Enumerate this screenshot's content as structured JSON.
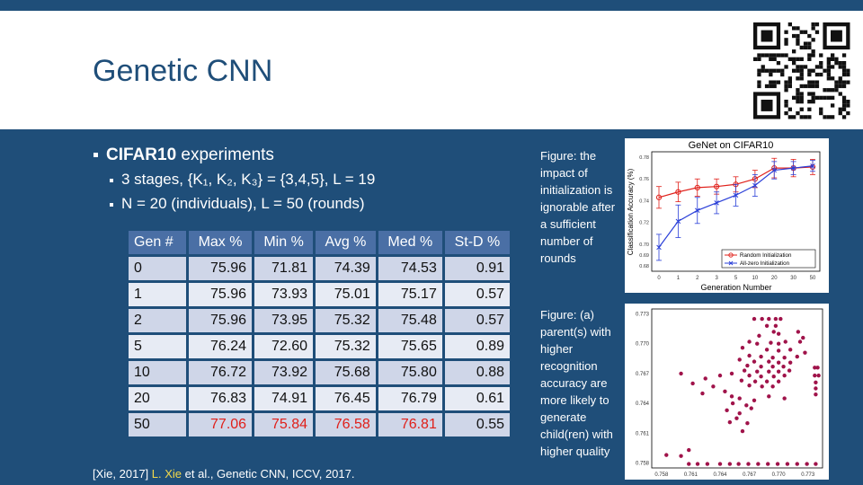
{
  "slide": {
    "title": "Genetic CNN",
    "bullets": {
      "main": "CIFAR10 experiments",
      "main_bold": "CIFAR10",
      "main_rest": " experiments",
      "sub1": "3 stages, {K₁, K₂, K₃} = {3,4,5}, L = 19",
      "sub2": "N = 20 (individuals), L = 50 (rounds)"
    },
    "citation": {
      "prefix": "[Xie, 2017] ",
      "author": "L. Xie",
      "rest": " et al., Genetic CNN, ICCV, 2017."
    }
  },
  "table": {
    "headers": [
      "Gen #",
      "Max %",
      "Min %",
      "Avg %",
      "Med %",
      "St-D %"
    ],
    "rows": [
      {
        "cells": [
          "0",
          "75.96",
          "71.81",
          "74.39",
          "74.53",
          "0.91"
        ],
        "red": [
          false,
          false,
          false,
          false,
          false,
          false
        ]
      },
      {
        "cells": [
          "1",
          "75.96",
          "73.93",
          "75.01",
          "75.17",
          "0.57"
        ],
        "red": [
          false,
          false,
          false,
          false,
          false,
          false
        ]
      },
      {
        "cells": [
          "2",
          "75.96",
          "73.95",
          "75.32",
          "75.48",
          "0.57"
        ],
        "red": [
          false,
          false,
          false,
          false,
          false,
          false
        ]
      },
      {
        "cells": [
          "5",
          "76.24",
          "72.60",
          "75.32",
          "75.65",
          "0.89"
        ],
        "red": [
          false,
          false,
          false,
          false,
          false,
          false
        ]
      },
      {
        "cells": [
          "10",
          "76.72",
          "73.92",
          "75.68",
          "75.80",
          "0.88"
        ],
        "red": [
          false,
          false,
          false,
          false,
          false,
          false
        ]
      },
      {
        "cells": [
          "20",
          "76.83",
          "74.91",
          "76.45",
          "76.79",
          "0.61"
        ],
        "red": [
          false,
          false,
          false,
          false,
          false,
          false
        ]
      },
      {
        "cells": [
          "50",
          "77.06",
          "75.84",
          "76.58",
          "76.81",
          "0.55"
        ],
        "red": [
          false,
          true,
          true,
          true,
          true,
          false
        ]
      }
    ]
  },
  "captions": {
    "fig1": "Figure: the impact of initialization is ignorable after a sufficient number of rounds",
    "fig2": "Figure: (a) parent(s) with higher recognition accuracy are more likely to generate child(ren) with higher quality"
  },
  "colors": {
    "brand": "#1f4e79",
    "red_series": "#e0201a",
    "blue_series": "#2a3fd8",
    "scatter_dot": "#a0134a",
    "highlight": "#f3d94a"
  },
  "chart_data": [
    {
      "type": "line",
      "title": "GeNet on CIFAR10",
      "xlabel": "Generation Number",
      "ylabel": "Classification Accuracy (%)",
      "x": [
        "0",
        "1",
        "2",
        "3",
        "5",
        "10",
        "20",
        "30",
        "50"
      ],
      "yticks": [
        "0.68",
        "0.69",
        "0.70",
        "0.72",
        "0.74",
        "0.76",
        "0.78"
      ],
      "ylim": [
        0.675,
        0.785
      ],
      "legend_position": "bottom-right",
      "series": [
        {
          "name": "Random Initialization",
          "color": "#e0201a",
          "marker": "circle",
          "values": [
            0.743,
            0.748,
            0.752,
            0.753,
            0.755,
            0.76,
            0.77,
            0.77,
            0.771
          ],
          "errors": [
            0.01,
            0.009,
            0.008,
            0.007,
            0.007,
            0.008,
            0.009,
            0.008,
            0.007
          ]
        },
        {
          "name": "All-zero Initialization",
          "color": "#2a3fd8",
          "marker": "x",
          "values": [
            0.697,
            0.721,
            0.731,
            0.738,
            0.745,
            0.754,
            0.768,
            0.77,
            0.772
          ],
          "errors": [
            0.012,
            0.015,
            0.012,
            0.01,
            0.01,
            0.01,
            0.008,
            0.006,
            0.005
          ]
        }
      ]
    },
    {
      "type": "scatter",
      "xticks": [
        "0.758",
        "0.761",
        "0.764",
        "0.767",
        "0.770",
        "0.773"
      ],
      "yticks": [
        "0.758",
        "0.761",
        "0.764",
        "0.767",
        "0.770",
        "0.773"
      ],
      "xlim": [
        0.757,
        0.7745
      ],
      "ylim": [
        0.7575,
        0.7735
      ],
      "series": [
        {
          "color": "#a0134a",
          "points": [
            [
              0.7675,
              0.7725
            ],
            [
              0.7683,
              0.7725
            ],
            [
              0.769,
              0.7725
            ],
            [
              0.7697,
              0.7725
            ],
            [
              0.7702,
              0.7725
            ],
            [
              0.7688,
              0.7718
            ],
            [
              0.7697,
              0.7718
            ],
            [
              0.7695,
              0.7712
            ],
            [
              0.77,
              0.771
            ],
            [
              0.768,
              0.7708
            ],
            [
              0.772,
              0.7712
            ],
            [
              0.7725,
              0.7706
            ],
            [
              0.767,
              0.7702
            ],
            [
              0.7678,
              0.77
            ],
            [
              0.7692,
              0.7701
            ],
            [
              0.77,
              0.77
            ],
            [
              0.7707,
              0.7702
            ],
            [
              0.7722,
              0.7702
            ],
            [
              0.7663,
              0.7696
            ],
            [
              0.7688,
              0.7694
            ],
            [
              0.77,
              0.7693
            ],
            [
              0.7712,
              0.7694
            ],
            [
              0.7727,
              0.7691
            ],
            [
              0.767,
              0.7688
            ],
            [
              0.7682,
              0.7687
            ],
            [
              0.7694,
              0.7686
            ],
            [
              0.7706,
              0.7686
            ],
            [
              0.7719,
              0.7687
            ],
            [
              0.766,
              0.7684
            ],
            [
              0.7675,
              0.7682
            ],
            [
              0.769,
              0.7682
            ],
            [
              0.77,
              0.7681
            ],
            [
              0.7712,
              0.7681
            ],
            [
              0.7668,
              0.7678
            ],
            [
              0.7682,
              0.7677
            ],
            [
              0.7694,
              0.7677
            ],
            [
              0.7705,
              0.7677
            ],
            [
              0.7737,
              0.7676
            ],
            [
              0.774,
              0.7676
            ],
            [
              0.7665,
              0.7673
            ],
            [
              0.7678,
              0.7672
            ],
            [
              0.769,
              0.7672
            ],
            [
              0.77,
              0.7672
            ],
            [
              0.7711,
              0.7673
            ],
            [
              0.767,
              0.7668
            ],
            [
              0.7682,
              0.7667
            ],
            [
              0.7695,
              0.7667
            ],
            [
              0.7706,
              0.7668
            ],
            [
              0.7737,
              0.7668
            ],
            [
              0.7741,
              0.7668
            ],
            [
              0.7662,
              0.7663
            ],
            [
              0.7676,
              0.7662
            ],
            [
              0.7688,
              0.7662
            ],
            [
              0.77,
              0.7662
            ],
            [
              0.7738,
              0.7661
            ],
            [
              0.767,
              0.7658
            ],
            [
              0.7683,
              0.7657
            ],
            [
              0.7694,
              0.7657
            ],
            [
              0.7738,
              0.7655
            ],
            [
              0.76,
              0.767
            ],
            [
              0.7612,
              0.766
            ],
            [
              0.7625,
              0.7665
            ],
            [
              0.764,
              0.7668
            ],
            [
              0.7652,
              0.767
            ],
            [
              0.7633,
              0.7657
            ],
            [
              0.7645,
              0.7652
            ],
            [
              0.7622,
              0.765
            ],
            [
              0.7652,
              0.7647
            ],
            [
              0.7738,
              0.7649
            ],
            [
              0.766,
              0.7645
            ],
            [
              0.7675,
              0.7643
            ],
            [
              0.769,
              0.7647
            ],
            [
              0.7706,
              0.7645
            ],
            [
              0.7653,
              0.764
            ],
            [
              0.7667,
              0.7638
            ],
            [
              0.7647,
              0.7633
            ],
            [
              0.766,
              0.763
            ],
            [
              0.7672,
              0.7635
            ],
            [
              0.7657,
              0.7625
            ],
            [
              0.765,
              0.7621
            ],
            [
              0.7668,
              0.762
            ],
            [
              0.7663,
              0.7612
            ],
            [
              0.7585,
              0.7588
            ],
            [
              0.76,
              0.7587
            ],
            [
              0.7608,
              0.7593
            ],
            [
              0.7608,
              0.7579
            ],
            [
              0.7617,
              0.7579
            ],
            [
              0.7627,
              0.7579
            ],
            [
              0.764,
              0.7579
            ],
            [
              0.765,
              0.7579
            ],
            [
              0.7659,
              0.7579
            ],
            [
              0.7669,
              0.7579
            ],
            [
              0.7679,
              0.7579
            ],
            [
              0.7689,
              0.7579
            ],
            [
              0.7699,
              0.7579
            ],
            [
              0.7709,
              0.7579
            ],
            [
              0.7719,
              0.7579
            ],
            [
              0.7729,
              0.7579
            ],
            [
              0.7738,
              0.7579
            ]
          ]
        }
      ]
    }
  ]
}
